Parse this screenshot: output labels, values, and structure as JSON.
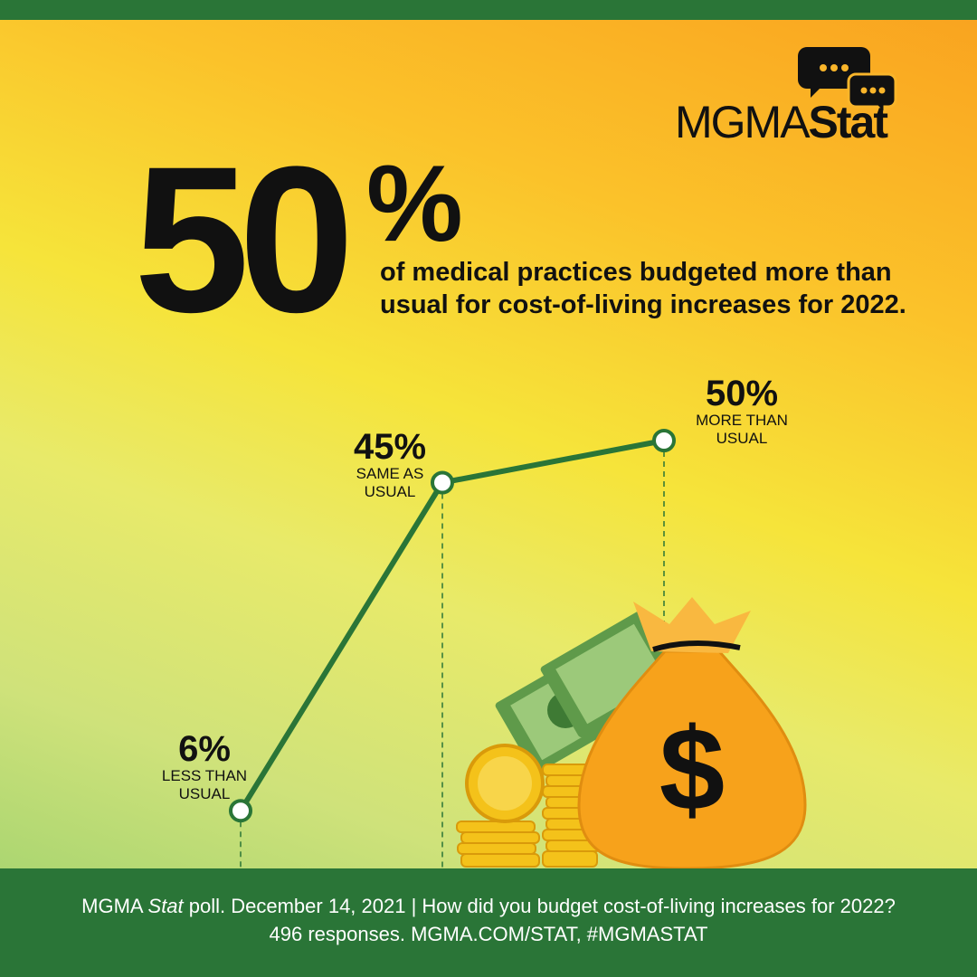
{
  "logo": {
    "text_light": "MGMA",
    "text_bold": "Stat",
    "icon": "chat-bubbles-icon"
  },
  "headline": {
    "value": "50",
    "unit": "%",
    "text": "of medical practices budgeted more than usual for cost-of-living increases for 2022."
  },
  "chart_data": {
    "type": "line",
    "categories": [
      "LESS THAN USUAL",
      "SAME AS USUAL",
      "MORE THAN USUAL"
    ],
    "values": [
      6,
      45,
      50
    ],
    "data_labels": [
      "6%",
      "45%",
      "50%"
    ],
    "line_color": "#2a7537",
    "grid": false
  },
  "footer": {
    "line1_prefix": "MGMA ",
    "line1_italic": "Stat",
    "line1_rest": " poll. December 14, 2021  |  How did you budget cost-of-living increases for 2022?",
    "line2": "496 responses. MGMA.COM/STAT, #MGMASTAT"
  },
  "colors": {
    "green": "#2a7537",
    "orange": "#f7a21b",
    "black": "#111111"
  }
}
